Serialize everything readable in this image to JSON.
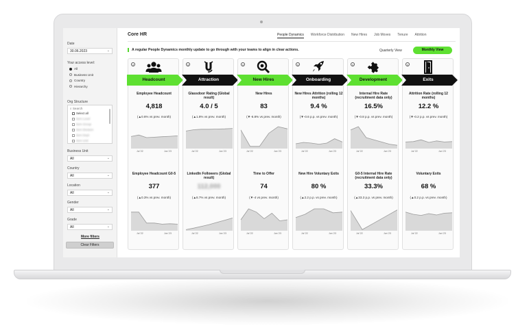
{
  "app": {
    "title": "Core HR"
  },
  "tabs": [
    "People Dynamics",
    "Workforce Distribution",
    "New Hires",
    "Job Moves",
    "Tenure",
    "Attrition"
  ],
  "banner": "A regular People Dynamics monthly update to go through with your teams to align in clear actions.",
  "view_toggle": {
    "quarterly": "Quarterly View",
    "monthly": "Monthly View"
  },
  "colors": {
    "accent": "#5ee031",
    "arrow_dark": "#111111",
    "spark_fill": "#d9d9d9",
    "spark_line": "#9a9a9a"
  },
  "sidebar": {
    "date_label": "Date",
    "date_value": "30.06.2023",
    "access_label": "Your access level:",
    "access_options": [
      "All",
      "Business Unit",
      "Country",
      "Hierarchy"
    ],
    "org_label": "Org Structure",
    "org_search": "Search",
    "org_select_all": "Select all",
    "org_items": [
      "Item Level",
      "Item Group",
      "Item Division",
      "Item Dept",
      "Item Unit"
    ],
    "filters": [
      {
        "label": "Business Unit",
        "value": "All"
      },
      {
        "label": "Country",
        "value": "All"
      },
      {
        "label": "Location",
        "value": "All"
      },
      {
        "label": "Gender",
        "value": "All"
      },
      {
        "label": "Grade",
        "value": "All"
      }
    ],
    "more_filters": "More filters",
    "clear_filters": "Clear Filters"
  },
  "columns": [
    {
      "header": "Headcount",
      "icon": "people-icon",
      "green": true,
      "cards": [
        {
          "title": "Employee Headcount",
          "value": "4,818",
          "delta": "(▲0.6% vs prev. month)",
          "ticks": [
            "Jul '22",
            "Jun '23"
          ],
          "spark": [
            0.55,
            0.62,
            0.5,
            0.52,
            0.54,
            0.56,
            0.58
          ]
        },
        {
          "title": "Employee Headcount G0-5",
          "value": "377",
          "delta": "(▲0.3% vs prev. month)",
          "ticks": [
            "Jul '22",
            "Jun '23"
          ],
          "spark": [
            0.85,
            0.85,
            0.35,
            0.35,
            0.3,
            0.32,
            0.3
          ]
        }
      ]
    },
    {
      "header": "Attraction",
      "icon": "magnet-icon",
      "green": false,
      "cards": [
        {
          "title": "Glassdoor Rating (Global result)",
          "value": "4.0 / 5",
          "delta": "(▲1.8% vs prev. month)",
          "ticks": [
            "Jul '22",
            "Jun '23"
          ],
          "spark": [
            0.8,
            0.86,
            0.88,
            0.88,
            0.89,
            0.9,
            0.92
          ]
        },
        {
          "title": "LinkedIn Followers (Global result)",
          "value": "112,000",
          "delta": "(▲8.7% vs prev. month)",
          "ticks": [
            "Jul '22",
            "Jun '23"
          ],
          "spark": [
            0.05,
            0.12,
            0.2,
            0.28,
            0.38,
            0.48,
            0.58
          ]
        }
      ]
    },
    {
      "header": "New Hires",
      "icon": "magnifier-icon",
      "green": true,
      "cards": [
        {
          "title": "New Hires",
          "value": "83",
          "delta": "(▼-6.8% vs prev. month)",
          "ticks": [
            "Jul '22",
            "Jun '23"
          ],
          "spark": [
            0.85,
            0.1,
            0.1,
            0.7,
            1.0,
            0.9
          ]
        },
        {
          "title": "Time to Offer",
          "value": "74",
          "delta": "(▼-4 vs prev. month)",
          "ticks": [
            "Jul '22",
            "Jun '23"
          ],
          "spark": [
            0.5,
            1.0,
            0.85,
            0.55,
            0.8,
            0.45,
            0.5
          ]
        }
      ]
    },
    {
      "header": "Onboarding",
      "icon": "rocket-icon",
      "green": false,
      "cards": [
        {
          "title": "New Hires Attrition (rolling 12 months)",
          "value": "9.4 %",
          "delta": "(▼-0.6 p.p. vs prev. month)",
          "ticks": [
            "Jul '22",
            "Jun '23"
          ],
          "spark": [
            0.22,
            0.28,
            0.25,
            0.2,
            0.25,
            0.45,
            0.3
          ]
        },
        {
          "title": "New Hire Voluntary Exits",
          "value": "80 %",
          "delta": "(▲2.2 p.p. vs prev. month)",
          "ticks": [
            "Jul '22",
            "Jun '23"
          ],
          "spark": [
            0.6,
            0.75,
            1.0,
            1.0,
            0.82,
            0.85
          ]
        }
      ]
    },
    {
      "header": "Development",
      "icon": "puzzle-icon",
      "green": true,
      "cards": [
        {
          "title": "Internal Hire Rate (recruitment data only)",
          "value": "16.5%",
          "delta": "(▼-0.8 p.p. vs prev. month)",
          "ticks": [
            "Jul '22",
            "Jun '23"
          ],
          "spark": [
            0.85,
            1.0,
            0.5,
            0.4,
            0.3,
            0.2,
            0.15
          ]
        },
        {
          "title": "G0-5 Internal Hire Rate (recruitment data only)",
          "value": "33.3%",
          "delta": "(▲33.3 p.p. vs prev. month)",
          "ticks": [
            "Jul '22",
            "Jun '23"
          ],
          "spark": [
            0.92,
            0.05,
            0.35,
            0.65,
            0.95
          ]
        }
      ]
    },
    {
      "header": "Exits",
      "icon": "door-exit-icon",
      "green": false,
      "cards": [
        {
          "title": "Attrition Rate (rolling 12 months)",
          "value": "12.2 %",
          "delta": "(▼-0.2 p.p. vs prev. month)",
          "ticks": [
            "Jul '22",
            "Jun '23"
          ],
          "spark": [
            0.3,
            0.32,
            0.4,
            0.28,
            0.35,
            0.3,
            0.32
          ]
        },
        {
          "title": "Voluntary Exits",
          "value": "68 %",
          "delta": "(▲0.2 p.p. vs prev. month)",
          "ticks": [
            "Jul '22",
            "Jun '23"
          ],
          "spark": [
            0.85,
            0.75,
            0.7,
            0.78,
            0.72,
            0.8,
            0.82
          ]
        }
      ]
    }
  ]
}
